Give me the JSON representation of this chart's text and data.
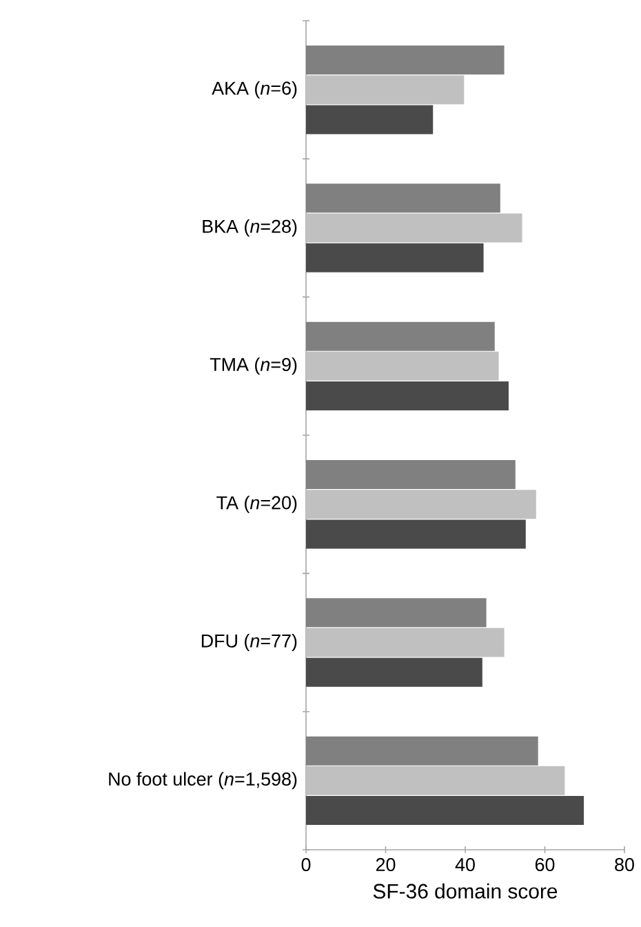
{
  "chart_data": {
    "type": "bar",
    "orientation": "horizontal",
    "xlabel": "SF-36 domain score",
    "categories": [
      "AKA (*n*=6)",
      "BKA (*n*=28)",
      "TMA (*n*=9)",
      "TA (*n*=20)",
      "DFU (*n*=77)",
      "No foot ulcer (*n*=1,598)"
    ],
    "series": [
      {
        "color": "#808080",
        "values": [
          49.8,
          48.8,
          47.4,
          52.6,
          45.3,
          58.3
        ]
      },
      {
        "color": "#c0c0c0",
        "values": [
          39.7,
          54.3,
          48.4,
          57.8,
          49.8,
          65.0
        ]
      },
      {
        "color": "#4a4a4a",
        "values": [
          31.9,
          44.6,
          50.9,
          55.2,
          44.3,
          69.8
        ]
      }
    ],
    "xlim": [
      0,
      80
    ],
    "xticks": [
      0,
      20,
      40,
      60,
      80
    ]
  }
}
